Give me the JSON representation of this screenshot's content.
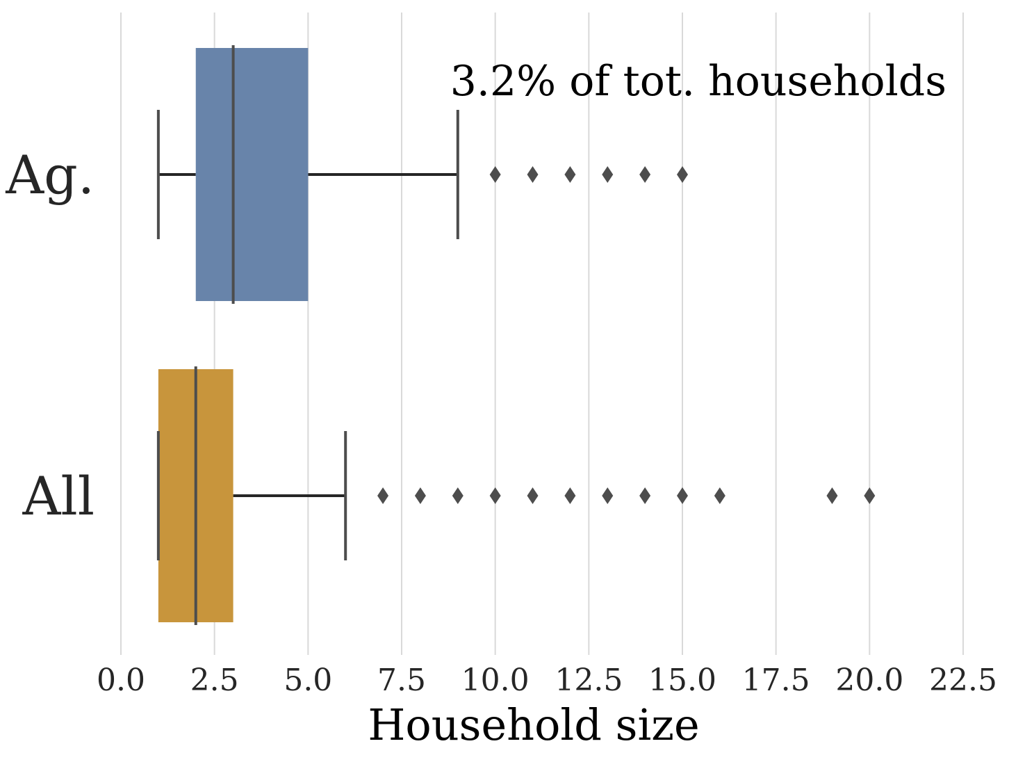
{
  "chart_data": {
    "type": "boxplot",
    "orientation": "horizontal",
    "xlabel": "Household size",
    "ylabel": "",
    "xlim": [
      0,
      22.5
    ],
    "xticks": [
      0.0,
      2.5,
      5.0,
      7.5,
      10.0,
      12.5,
      15.0,
      17.5,
      20.0,
      22.5
    ],
    "xtick_labels": [
      "0.0",
      "2.5",
      "5.0",
      "7.5",
      "10.0",
      "12.5",
      "15.0",
      "17.5",
      "20.0",
      "22.5"
    ],
    "grid": "vertical",
    "annotation": "3.2% of tot. households",
    "categories": [
      "Ag.",
      "All"
    ],
    "series": [
      {
        "category": "Ag.",
        "color": "#6884aa",
        "whisker_low": 1,
        "q1": 2,
        "median": 3,
        "q3": 5,
        "whisker_high": 9,
        "outliers": [
          10,
          11,
          12,
          13,
          14,
          15
        ]
      },
      {
        "category": "All",
        "color": "#c8953c",
        "whisker_low": 1,
        "q1": 1,
        "median": 2,
        "q3": 3,
        "whisker_high": 6,
        "outliers": [
          7,
          8,
          9,
          10,
          11,
          12,
          13,
          14,
          15,
          16,
          19,
          20
        ]
      }
    ]
  },
  "colors": {
    "grid": "#d9d9d9",
    "line": "#4d4d4d",
    "whisker": "#262626"
  }
}
